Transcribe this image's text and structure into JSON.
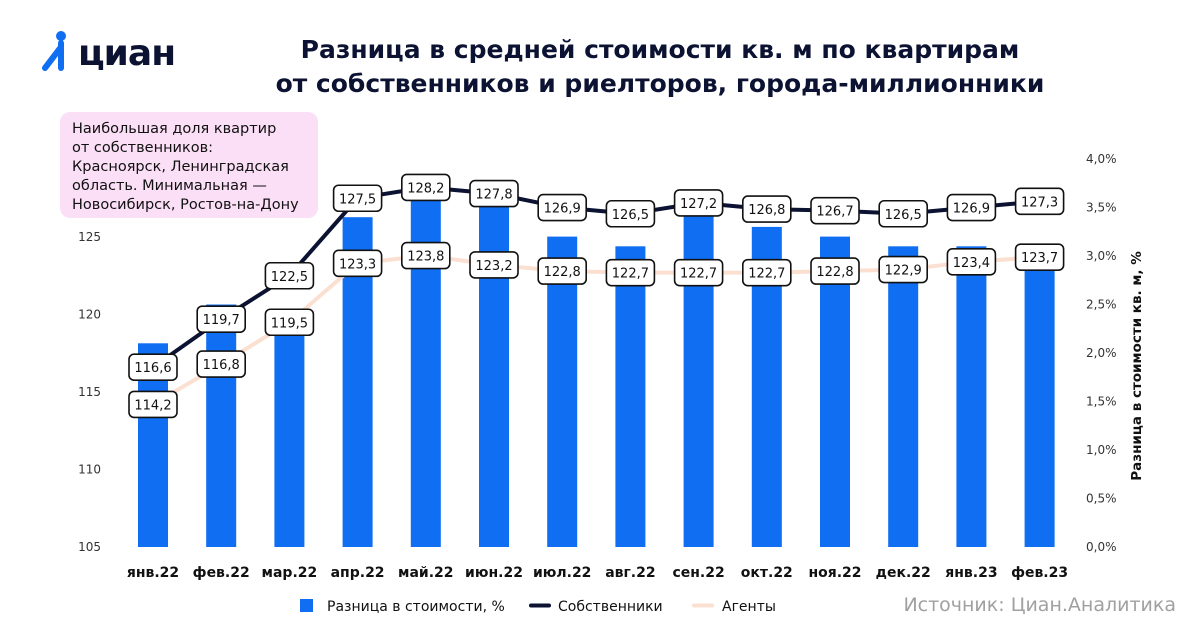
{
  "logo": {
    "text": "циан"
  },
  "title_lines": [
    "Разница в средней стоимости кв. м по квартирам",
    "от собственников и риелторов, города-миллионники"
  ],
  "note": "Наибольшая доля квартир\nот собственников:\nКрасноярск, Ленинградская\nобласть. Минимальная —\nНовосибирск, Ростов-на-Дону",
  "source": "Источник: Циан.Аналитика",
  "colors": {
    "bar": "#0f6ef2",
    "owners": "#0b1232",
    "agents": "#fbe0d2",
    "note_bg": "#fbdff6"
  },
  "chart_data": {
    "type": "bar",
    "categories": [
      "янв.22",
      "фев.22",
      "мар.22",
      "апр.22",
      "май.22",
      "июн.22",
      "июл.22",
      "авг.22",
      "сен.22",
      "окт.22",
      "ноя.22",
      "дек.22",
      "янв.23",
      "фев.23"
    ],
    "series": [
      {
        "name": "Разница в стоимости, %",
        "type": "bar",
        "axis": "right",
        "values": [
          2.1,
          2.5,
          2.3,
          3.4,
          3.6,
          3.7,
          3.2,
          3.1,
          3.6,
          3.3,
          3.2,
          3.1,
          3.1,
          3.1
        ]
      },
      {
        "name": "Собственники",
        "type": "line",
        "axis": "left",
        "values": [
          116.6,
          119.7,
          122.5,
          127.5,
          128.2,
          127.8,
          126.9,
          126.5,
          127.2,
          126.8,
          126.7,
          126.5,
          126.9,
          127.3
        ],
        "labels": [
          "116,6",
          "119,7",
          "122,5",
          "127,5",
          "128,2",
          "127,8",
          "126,9",
          "126,5",
          "127,2",
          "126,8",
          "126,7",
          "126,5",
          "126,9",
          "127,3"
        ]
      },
      {
        "name": "Агенты",
        "type": "line",
        "axis": "left",
        "values": [
          114.2,
          116.8,
          119.5,
          123.3,
          123.8,
          123.2,
          122.8,
          122.7,
          122.7,
          122.7,
          122.8,
          122.9,
          123.4,
          123.7
        ],
        "labels": [
          "114,2",
          "116,8",
          "119,5",
          "123,3",
          "123,8",
          "123,2",
          "122,8",
          "122,7",
          "122,7",
          "122,7",
          "122,8",
          "122,9",
          "123,4",
          "123,7"
        ]
      }
    ],
    "y_left": {
      "range": [
        105,
        130
      ],
      "ticks": [
        105,
        110,
        115,
        120,
        125
      ],
      "tick_labels": [
        "105",
        "110",
        "115",
        "120",
        "125"
      ]
    },
    "y_right": {
      "range": [
        0,
        4.0
      ],
      "ticks": [
        0,
        0.5,
        1.0,
        1.5,
        2.0,
        2.5,
        3.0,
        3.5,
        4.0
      ],
      "tick_labels": [
        "0,0%",
        "0,5%",
        "1,0%",
        "1,5%",
        "2,0%",
        "2,5%",
        "3,0%",
        "3,5%",
        "4,0%"
      ],
      "label": "Разница в стоимости кв. м, %"
    },
    "grid": false,
    "legend": {
      "position": "bottom",
      "items": [
        "Разница в стоимости, %",
        "Собственники",
        "Агенты"
      ]
    }
  }
}
